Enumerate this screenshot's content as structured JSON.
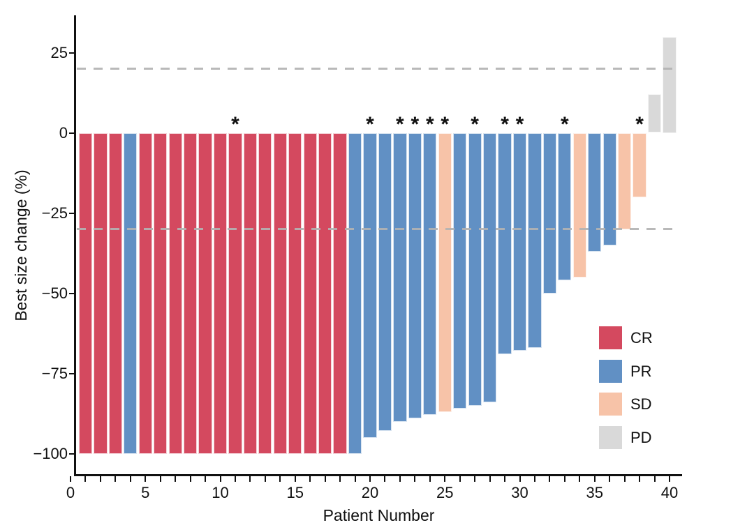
{
  "chart_data": {
    "type": "bar",
    "variant": "waterfall",
    "title": "",
    "xlabel": "Patient Number",
    "ylabel": "Best size change (%)",
    "xlim": [
      0,
      40.7
    ],
    "ylim": [
      -110,
      40
    ],
    "grid": false,
    "x_major_ticks": [
      0,
      5,
      10,
      15,
      20,
      25,
      30,
      35,
      40
    ],
    "x_minor_tick_every": 1,
    "x_tick_count": 41,
    "y_ticks": [
      {
        "value": 25,
        "label": "25"
      },
      {
        "value": 0,
        "label": "0"
      },
      {
        "value": -25,
        "label": "−25"
      },
      {
        "value": -50,
        "label": "−50"
      },
      {
        "value": -75,
        "label": "−75"
      },
      {
        "value": -100,
        "label": "−100"
      }
    ],
    "reference_lines": [
      {
        "value": 20,
        "style": "dashed",
        "color": "#b3b3b3"
      },
      {
        "value": -30,
        "style": "dashed",
        "color": "#b3b3b3"
      }
    ],
    "legend_position": "right-inside",
    "legend": [
      {
        "label": "CR",
        "color": "#d4495f"
      },
      {
        "label": "PR",
        "color": "#6190c4"
      },
      {
        "label": "SD",
        "color": "#f7c3a8"
      },
      {
        "label": "PD",
        "color": "#d9d9d9"
      }
    ],
    "star_annotation_glyph": "*",
    "starred_patients": [
      11,
      20,
      22,
      23,
      24,
      25,
      27,
      29,
      30,
      33,
      38
    ],
    "patients": [
      {
        "n": 1,
        "change_pct": -100,
        "response": "CR",
        "star": false
      },
      {
        "n": 2,
        "change_pct": -100,
        "response": "CR",
        "star": false
      },
      {
        "n": 3,
        "change_pct": -100,
        "response": "CR",
        "star": false
      },
      {
        "n": 4,
        "change_pct": -100,
        "response": "PR",
        "star": false
      },
      {
        "n": 5,
        "change_pct": -100,
        "response": "CR",
        "star": false
      },
      {
        "n": 6,
        "change_pct": -100,
        "response": "CR",
        "star": false
      },
      {
        "n": 7,
        "change_pct": -100,
        "response": "CR",
        "star": false
      },
      {
        "n": 8,
        "change_pct": -100,
        "response": "CR",
        "star": false
      },
      {
        "n": 9,
        "change_pct": -100,
        "response": "CR",
        "star": false
      },
      {
        "n": 10,
        "change_pct": -100,
        "response": "CR",
        "star": false
      },
      {
        "n": 11,
        "change_pct": -100,
        "response": "CR",
        "star": true
      },
      {
        "n": 12,
        "change_pct": -100,
        "response": "CR",
        "star": false
      },
      {
        "n": 13,
        "change_pct": -100,
        "response": "CR",
        "star": false
      },
      {
        "n": 14,
        "change_pct": -100,
        "response": "CR",
        "star": false
      },
      {
        "n": 15,
        "change_pct": -100,
        "response": "CR",
        "star": false
      },
      {
        "n": 16,
        "change_pct": -100,
        "response": "CR",
        "star": false
      },
      {
        "n": 17,
        "change_pct": -100,
        "response": "CR",
        "star": false
      },
      {
        "n": 18,
        "change_pct": -100,
        "response": "CR",
        "star": false
      },
      {
        "n": 19,
        "change_pct": -100,
        "response": "PR",
        "star": false
      },
      {
        "n": 20,
        "change_pct": -95,
        "response": "PR",
        "star": true
      },
      {
        "n": 21,
        "change_pct": -93,
        "response": "PR",
        "star": false
      },
      {
        "n": 22,
        "change_pct": -90,
        "response": "PR",
        "star": true
      },
      {
        "n": 23,
        "change_pct": -89,
        "response": "PR",
        "star": true
      },
      {
        "n": 24,
        "change_pct": -88,
        "response": "PR",
        "star": true
      },
      {
        "n": 25,
        "change_pct": -87,
        "response": "SD",
        "star": true
      },
      {
        "n": 26,
        "change_pct": -86,
        "response": "PR",
        "star": false
      },
      {
        "n": 27,
        "change_pct": -85,
        "response": "PR",
        "star": true
      },
      {
        "n": 28,
        "change_pct": -84,
        "response": "PR",
        "star": false
      },
      {
        "n": 29,
        "change_pct": -69,
        "response": "PR",
        "star": true
      },
      {
        "n": 30,
        "change_pct": -68,
        "response": "PR",
        "star": true
      },
      {
        "n": 31,
        "change_pct": -67,
        "response": "PR",
        "star": false
      },
      {
        "n": 32,
        "change_pct": -50,
        "response": "PR",
        "star": false
      },
      {
        "n": 33,
        "change_pct": -46,
        "response": "PR",
        "star": true
      },
      {
        "n": 34,
        "change_pct": -45,
        "response": "SD",
        "star": false
      },
      {
        "n": 35,
        "change_pct": -37,
        "response": "PR",
        "star": false
      },
      {
        "n": 36,
        "change_pct": -35,
        "response": "PR",
        "star": false
      },
      {
        "n": 37,
        "change_pct": -30,
        "response": "SD",
        "star": false
      },
      {
        "n": 38,
        "change_pct": -20,
        "response": "SD",
        "star": true
      },
      {
        "n": 39,
        "change_pct": 12,
        "response": "PD",
        "star": false
      },
      {
        "n": 40,
        "change_pct": 30,
        "response": "PD",
        "star": false
      }
    ]
  }
}
